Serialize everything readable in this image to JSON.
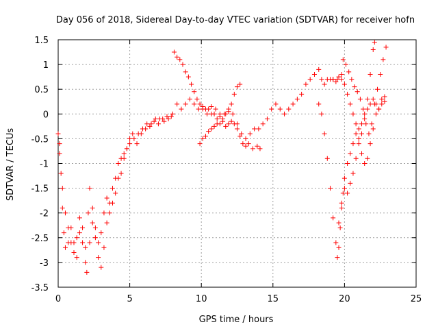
{
  "chart_data": {
    "type": "scatter",
    "title": "Day 056 of 2018, Sidereal Day-to-day VTEC variation (SDTVAR) for receiver hofn",
    "xlabel": "GPS time / hours",
    "ylabel": "SDTVAR / TECUs",
    "xlim": [
      0,
      25
    ],
    "ylim": [
      -3.5,
      1.5
    ],
    "x_ticks": [
      0,
      5,
      10,
      15,
      20,
      25
    ],
    "y_ticks": [
      -3.5,
      -3,
      -2.5,
      -2,
      -1.5,
      -1,
      -0.5,
      0,
      0.5,
      1,
      1.5
    ],
    "x_tick_labels": [
      "0",
      "5",
      "10",
      "15",
      "20",
      "25"
    ],
    "y_tick_labels": [
      "-3.5",
      "-3",
      "-2.5",
      "-2",
      "-1.5",
      "-1",
      "-0.5",
      "0",
      "0.5",
      "1",
      "1.5"
    ],
    "grid": true,
    "marker": "+",
    "color": "#ff0000",
    "series": [
      {
        "points": [
          [
            0.0,
            -0.4
          ],
          [
            0.1,
            -0.6
          ],
          [
            0.2,
            -1.2
          ],
          [
            0.3,
            -1.9
          ],
          [
            0.4,
            -2.4
          ],
          [
            0.5,
            -2.7
          ],
          [
            0.7,
            -2.6
          ],
          [
            0.9,
            -2.3
          ],
          [
            1.1,
            -2.6
          ],
          [
            1.3,
            -2.9
          ],
          [
            1.5,
            -2.4
          ],
          [
            1.7,
            -2.6
          ],
          [
            1.9,
            -3.0
          ],
          [
            2.0,
            -3.2
          ],
          [
            2.2,
            -2.6
          ],
          [
            2.4,
            -2.2
          ],
          [
            2.6,
            -2.5
          ],
          [
            2.8,
            -2.9
          ],
          [
            3.0,
            -3.1
          ],
          [
            3.2,
            -2.7
          ],
          [
            3.4,
            -2.2
          ],
          [
            3.6,
            -2.0
          ],
          [
            3.8,
            -1.8
          ],
          [
            4.0,
            -1.6
          ],
          [
            4.2,
            -1.3
          ],
          [
            4.4,
            -1.2
          ],
          [
            4.6,
            -0.9
          ],
          [
            4.8,
            -0.7
          ],
          [
            5.0,
            -0.6
          ],
          [
            5.3,
            -0.5
          ],
          [
            5.6,
            -0.4
          ],
          [
            5.9,
            -0.3
          ],
          [
            6.2,
            -0.2
          ],
          [
            6.5,
            -0.2
          ],
          [
            6.8,
            -0.1
          ],
          [
            7.1,
            -0.1
          ],
          [
            7.4,
            -0.15
          ],
          [
            7.7,
            -0.1
          ],
          [
            8.0,
            0.0
          ],
          [
            8.3,
            0.2
          ],
          [
            8.6,
            0.1
          ],
          [
            8.9,
            0.2
          ],
          [
            9.2,
            0.3
          ],
          [
            9.5,
            0.2
          ],
          [
            9.8,
            0.1
          ],
          [
            10.1,
            0.1
          ],
          [
            10.4,
            0.0
          ],
          [
            10.7,
            0.0
          ],
          [
            11.0,
            0.1
          ],
          [
            11.3,
            0.0
          ],
          [
            11.6,
            0.0
          ],
          [
            11.9,
            0.1
          ],
          [
            12.2,
            0.0
          ],
          [
            12.5,
            -0.2
          ],
          [
            12.8,
            -0.4
          ],
          [
            13.1,
            -0.5
          ],
          [
            13.4,
            -0.4
          ],
          [
            13.7,
            -0.3
          ],
          [
            14.0,
            -0.3
          ],
          [
            14.3,
            -0.2
          ],
          [
            14.6,
            -0.1
          ],
          [
            14.9,
            0.1
          ],
          [
            15.2,
            0.2
          ],
          [
            15.5,
            0.1
          ],
          [
            15.8,
            0.0
          ],
          [
            16.1,
            0.1
          ],
          [
            16.4,
            0.2
          ],
          [
            16.7,
            0.3
          ],
          [
            17.0,
            0.4
          ],
          [
            17.3,
            0.6
          ],
          [
            17.6,
            0.7
          ],
          [
            17.9,
            0.8
          ],
          [
            18.2,
            0.9
          ],
          [
            18.4,
            0.7
          ],
          [
            18.6,
            0.6
          ],
          [
            18.8,
            0.7
          ],
          [
            19.0,
            0.7
          ],
          [
            19.2,
            0.7
          ],
          [
            19.5,
            0.7
          ],
          [
            19.8,
            0.8
          ]
        ]
      },
      {
        "points": [
          [
            0.1,
            -0.8
          ],
          [
            0.3,
            -1.5
          ],
          [
            0.5,
            -2.0
          ],
          [
            0.7,
            -2.3
          ],
          [
            0.9,
            -2.6
          ],
          [
            1.1,
            -2.8
          ],
          [
            1.3,
            -2.5
          ],
          [
            1.5,
            -2.1
          ],
          [
            1.7,
            -2.3
          ],
          [
            1.9,
            -2.7
          ],
          [
            2.1,
            -2.0
          ],
          [
            2.2,
            -1.5
          ],
          [
            2.4,
            -1.9
          ],
          [
            2.6,
            -2.3
          ],
          [
            2.8,
            -2.6
          ],
          [
            3.0,
            -2.4
          ],
          [
            3.2,
            -2.0
          ],
          [
            3.4,
            -1.7
          ],
          [
            3.6,
            -1.8
          ],
          [
            3.8,
            -1.5
          ],
          [
            4.0,
            -1.3
          ],
          [
            4.2,
            -1.0
          ],
          [
            4.4,
            -0.9
          ],
          [
            4.6,
            -0.8
          ],
          [
            4.8,
            -0.7
          ],
          [
            5.0,
            -0.5
          ],
          [
            5.2,
            -0.4
          ],
          [
            5.5,
            -0.6
          ],
          [
            5.8,
            -0.4
          ],
          [
            6.1,
            -0.3
          ],
          [
            6.4,
            -0.25
          ],
          [
            6.7,
            -0.15
          ],
          [
            7.0,
            -0.2
          ],
          [
            7.3,
            -0.1
          ],
          [
            7.6,
            -0.05
          ],
          [
            7.9,
            -0.05
          ]
        ]
      },
      {
        "points": [
          [
            8.1,
            1.25
          ],
          [
            8.3,
            1.15
          ],
          [
            8.5,
            1.1
          ],
          [
            8.7,
            1.0
          ],
          [
            8.9,
            0.85
          ],
          [
            9.1,
            0.75
          ],
          [
            9.3,
            0.6
          ],
          [
            9.5,
            0.45
          ],
          [
            9.7,
            0.3
          ],
          [
            9.9,
            0.2
          ],
          [
            10.1,
            0.15
          ],
          [
            10.3,
            0.1
          ],
          [
            10.5,
            0.1
          ],
          [
            10.7,
            0.15
          ],
          [
            10.9,
            0.0
          ],
          [
            11.1,
            -0.1
          ],
          [
            11.3,
            -0.05
          ],
          [
            11.5,
            -0.1
          ],
          [
            11.7,
            0.0
          ],
          [
            11.9,
            0.05
          ],
          [
            12.1,
            0.2
          ],
          [
            12.3,
            0.4
          ],
          [
            12.5,
            0.55
          ],
          [
            12.7,
            0.6
          ]
        ]
      },
      {
        "points": [
          [
            9.9,
            -0.6
          ],
          [
            10.1,
            -0.5
          ],
          [
            10.3,
            -0.45
          ],
          [
            10.5,
            -0.35
          ],
          [
            10.7,
            -0.3
          ],
          [
            10.9,
            -0.25
          ],
          [
            11.1,
            -0.2
          ],
          [
            11.3,
            -0.2
          ],
          [
            11.5,
            -0.15
          ],
          [
            11.7,
            -0.25
          ],
          [
            11.9,
            -0.2
          ],
          [
            12.1,
            -0.15
          ],
          [
            12.3,
            -0.2
          ],
          [
            12.5,
            -0.3
          ],
          [
            12.7,
            -0.45
          ],
          [
            12.9,
            -0.6
          ],
          [
            13.1,
            -0.65
          ],
          [
            13.3,
            -0.6
          ],
          [
            13.6,
            -0.7
          ],
          [
            13.9,
            -0.65
          ],
          [
            14.1,
            -0.7
          ]
        ]
      },
      {
        "points": [
          [
            18.2,
            0.2
          ],
          [
            18.4,
            0.0
          ],
          [
            18.6,
            -0.4
          ],
          [
            18.8,
            -0.9
          ],
          [
            19.0,
            -1.5
          ],
          [
            19.2,
            -2.1
          ],
          [
            19.4,
            -2.6
          ],
          [
            19.5,
            -2.9
          ],
          [
            19.6,
            -2.7
          ],
          [
            19.7,
            -2.3
          ],
          [
            19.8,
            -1.9
          ],
          [
            19.9,
            -1.6
          ],
          [
            20.0,
            -1.3
          ],
          [
            20.2,
            -1.0
          ],
          [
            20.4,
            -0.8
          ],
          [
            20.6,
            -0.6
          ],
          [
            20.8,
            -0.4
          ],
          [
            21.0,
            -0.3
          ],
          [
            21.2,
            -0.2
          ],
          [
            21.4,
            0.0
          ],
          [
            21.6,
            0.1
          ],
          [
            21.8,
            0.2
          ],
          [
            22.0,
            0.3
          ],
          [
            22.2,
            0.2
          ],
          [
            22.4,
            0.1
          ],
          [
            22.6,
            0.2
          ],
          [
            22.8,
            0.25
          ]
        ]
      },
      {
        "points": [
          [
            19.9,
            1.1
          ],
          [
            20.1,
            1.0
          ],
          [
            20.3,
            0.85
          ],
          [
            20.5,
            0.7
          ],
          [
            20.7,
            0.55
          ],
          [
            20.9,
            0.45
          ],
          [
            21.1,
            0.3
          ],
          [
            21.3,
            0.1
          ],
          [
            21.5,
            -0.2
          ],
          [
            21.7,
            -0.4
          ],
          [
            21.9,
            -0.2
          ],
          [
            22.1,
            0.2
          ],
          [
            22.3,
            0.5
          ],
          [
            22.5,
            0.8
          ],
          [
            22.7,
            1.1
          ],
          [
            22.9,
            1.35
          ]
        ]
      },
      {
        "points": [
          [
            19.6,
            -2.2
          ],
          [
            19.8,
            -1.8
          ],
          [
            20.0,
            -1.5
          ],
          [
            20.2,
            -1.6
          ],
          [
            20.4,
            -1.4
          ],
          [
            20.6,
            -1.2
          ],
          [
            20.8,
            -0.9
          ],
          [
            21.0,
            -0.6
          ],
          [
            21.2,
            -0.4
          ],
          [
            21.4,
            -0.1
          ],
          [
            21.6,
            0.3
          ],
          [
            21.8,
            0.8
          ],
          [
            22.0,
            1.3
          ],
          [
            22.1,
            1.45
          ]
        ]
      },
      {
        "points": [
          [
            19.2,
            0.7
          ],
          [
            19.4,
            0.65
          ],
          [
            19.6,
            0.75
          ],
          [
            19.8,
            0.7
          ],
          [
            20.0,
            0.6
          ],
          [
            20.2,
            0.4
          ],
          [
            20.4,
            0.2
          ],
          [
            20.6,
            0.0
          ],
          [
            20.8,
            -0.2
          ],
          [
            21.0,
            -0.5
          ],
          [
            21.2,
            -0.8
          ],
          [
            21.4,
            -1.0
          ],
          [
            21.6,
            -0.9
          ],
          [
            21.8,
            -0.6
          ],
          [
            22.0,
            -0.3
          ],
          [
            22.2,
            0.0
          ],
          [
            22.4,
            0.1
          ],
          [
            22.6,
            0.3
          ],
          [
            22.8,
            0.35
          ]
        ]
      }
    ]
  }
}
